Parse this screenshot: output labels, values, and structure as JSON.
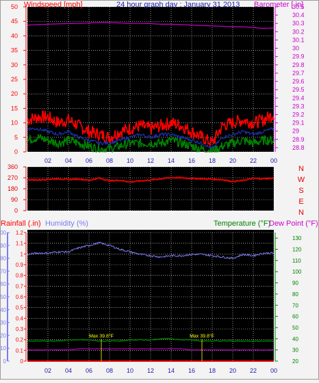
{
  "header": {
    "wind_label": "Windspeed [mph]",
    "title": "24 hour graph day : January 31 2013",
    "baro_label": "Barometer [ in]"
  },
  "labels": {
    "rain": "Rainfall (.in)",
    "humidity": "Humidity (%)",
    "temperature": "Temperature (°F)",
    "dewpoint": "Dew Point (°F)",
    "bottom_marker_1": "Max 39.8°F",
    "bottom_marker_2": "Max 39.8°F"
  },
  "colors": {
    "wind": "#ff0000",
    "wind_avg": "#1d2fa8",
    "wind_low": "#008000",
    "barometer": "#cc00cc",
    "direction": "#e00000",
    "rain": "#ff0000",
    "humidity": "#7b7bf0",
    "temperature": "#008000",
    "dewpoint": "#cc00cc",
    "marker": "#ffff00",
    "grid": "#ffffff",
    "frame": "#000000",
    "title": "#1a1ab0"
  },
  "chart_data": [
    {
      "type": "line",
      "name": "wind-baro",
      "x_ticks": [
        "02",
        "04",
        "06",
        "08",
        "10",
        "12",
        "14",
        "16",
        "18",
        "20",
        "22",
        "00"
      ],
      "x": [
        0,
        1,
        2,
        3,
        4,
        5,
        6,
        7,
        8,
        9,
        10,
        11,
        12,
        13,
        14,
        15,
        16,
        17,
        18,
        19,
        20,
        21,
        22,
        23,
        24
      ],
      "ylim": [
        0,
        50
      ],
      "y_ticks": [
        0,
        5,
        10,
        15,
        20,
        25,
        30,
        35,
        40,
        45,
        50
      ],
      "y2lim": [
        28.75,
        30.5
      ],
      "y2_ticks": [
        "28.8",
        "28.9",
        "29",
        "29.1",
        "29.2",
        "29.3",
        "29.4",
        "29.5",
        "29.6",
        "29.7",
        "29.8",
        "29.9",
        "30",
        "30.1",
        "30.2",
        "30.3",
        "30.4",
        "30.5"
      ],
      "series": [
        {
          "key": "gust",
          "values": [
            11,
            12,
            12,
            10,
            11,
            9,
            7,
            6,
            5,
            7,
            8,
            9,
            8,
            9,
            10,
            9,
            7,
            5,
            3,
            9,
            10,
            11,
            10,
            11,
            13
          ]
        },
        {
          "key": "avg",
          "values": [
            8,
            8,
            7,
            6,
            7,
            5,
            4,
            3,
            3,
            4,
            5,
            6,
            5,
            6,
            6,
            5,
            4,
            3,
            1,
            5,
            6,
            7,
            6,
            7,
            8
          ]
        },
        {
          "key": "low",
          "values": [
            4,
            5,
            4,
            3,
            4,
            3,
            2,
            1,
            1,
            2,
            3,
            3,
            3,
            3,
            4,
            3,
            2,
            1,
            0,
            2,
            3,
            4,
            3,
            4,
            4
          ]
        },
        {
          "key": "barometer",
          "values": [
            30.28,
            30.285,
            30.29,
            30.295,
            30.298,
            30.3,
            30.305,
            30.31,
            30.31,
            30.305,
            30.3,
            30.3,
            30.298,
            30.29,
            30.29,
            30.285,
            30.28,
            30.275,
            30.27,
            30.265,
            30.26,
            30.26,
            30.25,
            30.24,
            30.245
          ]
        }
      ]
    },
    {
      "type": "line",
      "name": "direction",
      "x": [
        0,
        1,
        2,
        3,
        4,
        5,
        6,
        7,
        8,
        9,
        10,
        11,
        12,
        13,
        14,
        15,
        16,
        17,
        18,
        19,
        20,
        21,
        22,
        23,
        24
      ],
      "ylim": [
        0,
        360
      ],
      "y_ticks": [
        0,
        90,
        180,
        270,
        360
      ],
      "compass": [
        "N",
        "W",
        "S",
        "E",
        "N"
      ],
      "series": [
        {
          "key": "direction",
          "values": [
            255,
            252,
            258,
            262,
            256,
            260,
            250,
            268,
            245,
            250,
            236,
            245,
            252,
            262,
            272,
            270,
            265,
            262,
            258,
            255,
            240,
            248,
            266,
            262,
            268
          ]
        }
      ]
    },
    {
      "type": "line",
      "name": "rain-hum-temp",
      "x_ticks": [
        "02",
        "04",
        "06",
        "08",
        "10",
        "12",
        "14",
        "16",
        "18",
        "20",
        "22",
        "00"
      ],
      "x": [
        0,
        1,
        2,
        3,
        4,
        5,
        6,
        7,
        8,
        9,
        10,
        11,
        12,
        13,
        14,
        15,
        16,
        17,
        18,
        19,
        20,
        21,
        22,
        23,
        24
      ],
      "rain_lim": [
        0,
        1.2
      ],
      "rain_ticks": [
        "0",
        "0.1",
        "0.2",
        "0.3",
        "0.4",
        "0.5",
        "0.6",
        "0.7",
        "0.8",
        "0.9",
        "1",
        "1.1",
        "1.2"
      ],
      "hum_lim": [
        0,
        100
      ],
      "hum_ticks": [
        0,
        10,
        20,
        30,
        40,
        50,
        60,
        70,
        80,
        90,
        100
      ],
      "temp_lim": [
        20,
        135
      ],
      "temp_ticks": [
        20,
        30,
        40,
        50,
        60,
        70,
        80,
        90,
        100,
        110,
        120,
        130
      ],
      "series": [
        {
          "key": "humidity",
          "values": [
            83,
            84,
            84,
            85,
            85,
            88,
            90,
            92,
            90,
            87,
            85,
            83,
            82,
            81,
            82,
            82,
            83,
            83,
            82,
            81,
            80,
            83,
            82,
            84,
            84
          ]
        },
        {
          "key": "temperature",
          "values": [
            38,
            38,
            38,
            38,
            39,
            39,
            39,
            38,
            38,
            38,
            39,
            39,
            39,
            40,
            40,
            39,
            39,
            38,
            38,
            38,
            38,
            38,
            38,
            38,
            38
          ]
        },
        {
          "key": "dewpoint",
          "values": [
            30,
            30,
            30,
            30,
            30,
            31,
            31,
            31,
            31,
            31,
            31,
            31,
            31,
            31,
            31,
            31,
            30,
            30,
            30,
            30,
            30,
            30,
            30,
            30,
            30
          ]
        },
        {
          "key": "rain",
          "values": [
            0,
            0,
            0,
            0,
            0,
            0,
            0,
            0,
            0,
            0,
            0,
            0,
            0,
            0,
            0,
            0,
            0,
            0,
            0,
            0,
            0,
            0,
            0,
            0,
            0
          ]
        }
      ]
    }
  ]
}
